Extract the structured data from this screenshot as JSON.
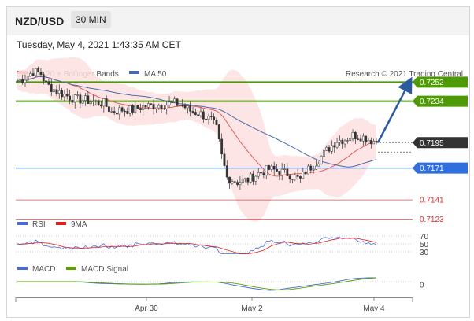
{
  "header": {
    "pair": "NZD/USD",
    "timeframe": "30 MIN"
  },
  "datetime": "Tuesday, May 4, 2021 1:43:35 AM CET",
  "legend": {
    "bb_label": "MA 20 + Bollinger Bands",
    "ma50_label": "MA 50",
    "credit": "Research © 2021 Trading Central"
  },
  "colors": {
    "target_green": "#4e9a06",
    "support_blue": "#2f6fe0",
    "resist_red": "#e03030",
    "price_dark": "#333333",
    "bb_fill": "#fde0e0",
    "ma20": "#e05050",
    "ma50": "#4a6aa8",
    "arrow": "#2c5aa0"
  },
  "chart_data": [
    {
      "type": "candlestick",
      "pair": "NZD/USD",
      "x_ticks": [
        "Apr 30",
        "May 2",
        "May 4"
      ],
      "ylim": [
        0.7105,
        0.7275
      ],
      "last_price": 0.7195,
      "levels": [
        {
          "value": 0.7252,
          "label": "0.7252",
          "kind": "target"
        },
        {
          "value": 0.7234,
          "label": "0.7234",
          "kind": "target"
        },
        {
          "value": 0.7195,
          "label": "0.7195",
          "kind": "last"
        },
        {
          "value": 0.7171,
          "label": "0.7171",
          "kind": "pivot"
        },
        {
          "value": 0.7141,
          "label": "0.7141",
          "kind": "support"
        },
        {
          "value": 0.7123,
          "label": "0.7123",
          "kind": "support"
        }
      ],
      "close_path": [
        [
          0,
          0.7253
        ],
        [
          3,
          0.7256
        ],
        [
          6,
          0.7262
        ],
        [
          9,
          0.726
        ],
        [
          11,
          0.725
        ],
        [
          14,
          0.7245
        ],
        [
          18,
          0.724
        ],
        [
          22,
          0.7236
        ],
        [
          26,
          0.7235
        ],
        [
          30,
          0.7233
        ],
        [
          33,
          0.7232
        ],
        [
          36,
          0.7224
        ],
        [
          40,
          0.7226
        ],
        [
          44,
          0.7226
        ],
        [
          48,
          0.7229
        ],
        [
          52,
          0.723
        ],
        [
          56,
          0.7231
        ],
        [
          60,
          0.7232
        ],
        [
          63,
          0.723
        ],
        [
          66,
          0.7225
        ],
        [
          70,
          0.7222
        ],
        [
          74,
          0.7216
        ],
        [
          76,
          0.7208
        ],
        [
          78,
          0.7182
        ],
        [
          80,
          0.7162
        ],
        [
          84,
          0.7158
        ],
        [
          88,
          0.716
        ],
        [
          92,
          0.7166
        ],
        [
          96,
          0.717
        ],
        [
          100,
          0.7168
        ],
        [
          104,
          0.7165
        ],
        [
          108,
          0.716
        ],
        [
          110,
          0.7168
        ],
        [
          113,
          0.7174
        ],
        [
          116,
          0.7182
        ],
        [
          119,
          0.719
        ],
        [
          122,
          0.7197
        ],
        [
          125,
          0.7198
        ],
        [
          128,
          0.7202
        ],
        [
          131,
          0.7201
        ],
        [
          134,
          0.7198
        ],
        [
          137,
          0.7196
        ]
      ],
      "projection": {
        "from": 0.7195,
        "to": 0.7252
      }
    },
    {
      "type": "line",
      "name": "RSI",
      "series": [
        {
          "name": "RSI"
        },
        {
          "name": "9MA"
        }
      ],
      "levels": [
        {
          "value": 70,
          "label": "70"
        },
        {
          "value": 50,
          "label": "50"
        },
        {
          "value": 30,
          "label": "30"
        }
      ]
    },
    {
      "type": "line",
      "name": "MACD",
      "series": [
        {
          "name": "MACD"
        },
        {
          "name": "MACD Signal"
        }
      ],
      "levels": [
        {
          "value": 0,
          "label": "0"
        }
      ]
    }
  ]
}
